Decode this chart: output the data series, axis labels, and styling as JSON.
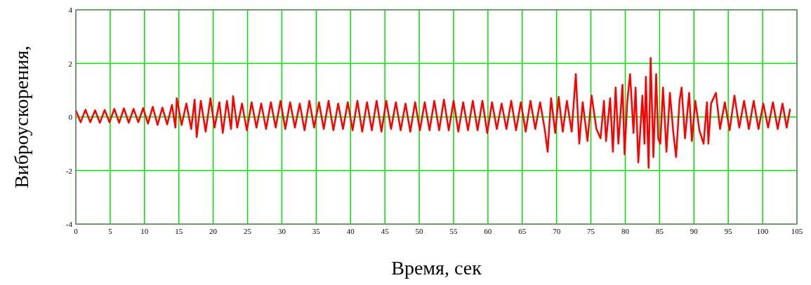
{
  "chart_data": {
    "type": "line",
    "xlabel": "Время, сек",
    "ylabel": "Виброускорения,",
    "xlim": [
      0,
      105
    ],
    "ylim": [
      -4,
      4
    ],
    "xticks": [
      0,
      5,
      10,
      15,
      20,
      25,
      30,
      35,
      40,
      45,
      50,
      55,
      60,
      65,
      70,
      75,
      80,
      85,
      90,
      95,
      100,
      105
    ],
    "yticks": [
      -4,
      -2,
      0,
      2,
      4
    ],
    "grid": true,
    "series": [
      {
        "color": "#ff0000",
        "x": [
          0,
          0.7,
          1.4,
          2.1,
          2.8,
          3.5,
          4.2,
          4.9,
          5.6,
          6.3,
          7.0,
          7.7,
          8.4,
          9.1,
          9.8,
          10.5,
          11.2,
          11.9,
          12.6,
          13.3,
          14.0,
          14.5,
          14.7,
          15.4,
          16.1,
          16.8,
          17.3,
          17.6,
          18.2,
          18.9,
          19.6,
          20.2,
          20.9,
          21.4,
          22.0,
          22.6,
          22.9,
          23.5,
          24.2,
          24.9,
          25.6,
          26.3,
          27.0,
          27.7,
          28.4,
          29.1,
          29.8,
          30.5,
          31.2,
          31.9,
          32.6,
          33.3,
          34.0,
          34.7,
          35.4,
          36.1,
          36.8,
          37.5,
          38.2,
          38.9,
          39.6,
          40.3,
          41.0,
          41.7,
          42.4,
          43.1,
          43.8,
          44.5,
          45.2,
          45.9,
          46.6,
          47.3,
          48.0,
          48.7,
          49.4,
          50.1,
          50.8,
          51.5,
          52.2,
          52.9,
          53.6,
          54.3,
          55.0,
          55.7,
          56.4,
          57.1,
          57.8,
          58.5,
          59.2,
          59.9,
          60.6,
          61.3,
          62.0,
          62.7,
          63.4,
          64.1,
          64.8,
          65.5,
          66.2,
          66.9,
          67.6,
          68.3,
          68.7,
          69.2,
          69.8,
          70.3,
          70.9,
          71.5,
          72.2,
          72.8,
          73.3,
          73.8,
          74.5,
          75.1,
          75.8,
          76.4,
          76.9,
          77.2,
          77.8,
          78.2,
          78.6,
          79.0,
          79.6,
          79.9,
          80.3,
          80.7,
          81.2,
          81.5,
          81.9,
          82.5,
          82.8,
          83.0,
          83.4,
          83.7,
          84.1,
          84.5,
          84.8,
          85.1,
          85.5,
          86.0,
          86.5,
          87.0,
          87.4,
          87.9,
          88.2,
          88.7,
          89.3,
          89.7,
          90.2,
          90.8,
          91.4,
          91.9,
          92.1,
          92.5,
          93.2,
          93.8,
          94.5,
          95.2,
          95.9,
          96.6,
          97.3,
          98.0,
          98.7,
          99.4,
          100.1,
          100.8,
          101.5,
          102.2,
          102.9,
          103.5,
          104.0
        ],
        "values": [
          0.25,
          -0.2,
          0.27,
          -0.2,
          0.25,
          -0.22,
          0.26,
          -0.2,
          0.3,
          -0.22,
          0.32,
          -0.22,
          0.3,
          -0.2,
          0.33,
          -0.25,
          0.38,
          -0.3,
          0.35,
          -0.28,
          0.45,
          -0.4,
          0.7,
          -0.3,
          0.5,
          -0.45,
          0.65,
          -0.75,
          0.6,
          -0.55,
          0.7,
          -0.4,
          0.55,
          -0.6,
          0.6,
          -0.45,
          0.78,
          -0.4,
          0.5,
          -0.5,
          0.55,
          -0.4,
          0.5,
          -0.45,
          0.55,
          -0.4,
          0.6,
          -0.45,
          0.55,
          -0.4,
          0.5,
          -0.5,
          0.6,
          -0.4,
          0.55,
          -0.45,
          0.6,
          -0.5,
          0.5,
          -0.45,
          0.55,
          -0.5,
          0.6,
          -0.55,
          0.55,
          -0.5,
          0.6,
          -0.55,
          0.6,
          -0.45,
          0.55,
          -0.5,
          0.5,
          -0.55,
          0.55,
          -0.5,
          0.55,
          -0.5,
          0.6,
          -0.5,
          0.65,
          -0.5,
          0.6,
          -0.55,
          0.55,
          -0.5,
          0.6,
          -0.5,
          0.6,
          -0.6,
          0.55,
          -0.45,
          0.5,
          -0.45,
          0.6,
          -0.5,
          0.55,
          -0.55,
          0.6,
          -0.45,
          0.55,
          -0.5,
          -1.3,
          0.7,
          -0.6,
          0.75,
          -0.55,
          0.6,
          -0.55,
          1.6,
          -1.0,
          0.55,
          -0.9,
          0.8,
          -0.45,
          -0.8,
          0.6,
          -0.9,
          0.7,
          -1.3,
          1.1,
          -1.0,
          1.2,
          -1.4,
          0.6,
          1.6,
          -0.6,
          1.1,
          -1.7,
          0.8,
          -1.0,
          1.5,
          -1.9,
          2.2,
          -1.5,
          1.6,
          -0.8,
          -1.0,
          1.1,
          -1.3,
          0.9,
          -0.6,
          -1.5,
          0.6,
          1.1,
          -0.8,
          0.9,
          -0.9,
          0.6,
          -0.5,
          -1.0,
          0.55,
          -1.0,
          0.5,
          0.9,
          -0.45,
          0.55,
          -0.5,
          0.8,
          -0.4,
          0.6,
          -0.45,
          0.6,
          -0.45,
          0.5,
          -0.4,
          0.55,
          -0.45,
          0.5,
          -0.4,
          0.3
        ]
      }
    ]
  }
}
